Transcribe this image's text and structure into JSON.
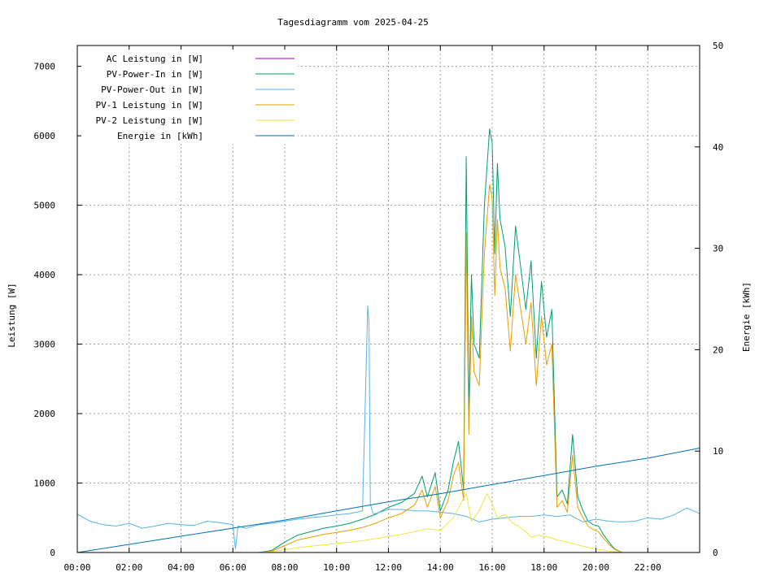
{
  "chart_data": {
    "type": "line",
    "title": "Tagesdiagramm vom 2025-04-25",
    "ylabel": "Leistung [W]",
    "y2label": "Energie [kWh]",
    "xlabel": "",
    "xlim": [
      0,
      24
    ],
    "ylim": [
      0,
      7300
    ],
    "y2lim": [
      0,
      50
    ],
    "x_ticks": [
      "00:00",
      "02:00",
      "04:00",
      "06:00",
      "08:00",
      "10:00",
      "12:00",
      "14:00",
      "16:00",
      "18:00",
      "20:00",
      "22:00"
    ],
    "y_ticks": [
      "0",
      "1000",
      "2000",
      "3000",
      "4000",
      "5000",
      "6000",
      "7000"
    ],
    "y2_ticks": [
      "0",
      "10",
      "20",
      "30",
      "40",
      "50"
    ],
    "grid": true,
    "legend_position": "top-left",
    "series": [
      {
        "name": "AC Leistung in [W]",
        "axis": "left",
        "color": "#9400d3",
        "x": [],
        "values": []
      },
      {
        "name": "PV-Power-In in [W]",
        "axis": "left",
        "color": "#009e73",
        "x": [
          7.0,
          7.5,
          8.0,
          8.5,
          9.0,
          9.5,
          10.0,
          10.5,
          11.0,
          11.5,
          12.0,
          12.5,
          13.0,
          13.3,
          13.5,
          13.8,
          14.0,
          14.3,
          14.5,
          14.7,
          14.9,
          15.0,
          15.1,
          15.2,
          15.3,
          15.5,
          15.7,
          15.9,
          16.0,
          16.1,
          16.2,
          16.3,
          16.5,
          16.7,
          16.9,
          17.1,
          17.3,
          17.5,
          17.7,
          17.9,
          18.1,
          18.3,
          18.5,
          18.7,
          18.9,
          19.1,
          19.3,
          19.5,
          19.7,
          19.9,
          20.1,
          20.3,
          20.5,
          20.7,
          20.9,
          21.0
        ],
        "values": [
          0,
          30,
          150,
          250,
          300,
          350,
          380,
          420,
          480,
          550,
          650,
          720,
          850,
          1100,
          800,
          1150,
          600,
          900,
          1300,
          1600,
          900,
          5700,
          2000,
          4000,
          3000,
          2800,
          5000,
          6100,
          5900,
          4300,
          5600,
          4800,
          4400,
          3400,
          4700,
          4100,
          3500,
          4200,
          2800,
          3900,
          3100,
          3500,
          800,
          900,
          700,
          1700,
          800,
          600,
          450,
          400,
          380,
          250,
          150,
          60,
          20,
          0
        ]
      },
      {
        "name": "PV-Power-Out in [W]",
        "axis": "left",
        "color": "#56b4e9",
        "x": [
          0,
          0.5,
          1,
          1.5,
          2,
          2.5,
          3,
          3.5,
          4,
          4.5,
          5,
          5.5,
          6,
          6.1,
          6.2,
          6.5,
          7,
          7.5,
          8,
          8.5,
          9,
          9.5,
          10,
          10.5,
          11,
          11.2,
          11.25,
          11.3,
          11.4,
          11.5,
          12,
          12.5,
          13,
          13.5,
          14,
          14.5,
          15,
          15.5,
          16,
          16.5,
          17,
          17.5,
          18,
          18.5,
          19,
          19.5,
          20,
          20.5,
          21,
          21.5,
          22,
          22.5,
          23,
          23.5,
          24
        ],
        "values": [
          550,
          450,
          400,
          380,
          420,
          350,
          380,
          420,
          400,
          390,
          450,
          430,
          400,
          50,
          380,
          350,
          400,
          420,
          450,
          480,
          500,
          520,
          540,
          560,
          600,
          3550,
          3300,
          700,
          560,
          560,
          620,
          620,
          600,
          600,
          580,
          560,
          520,
          440,
          480,
          500,
          520,
          520,
          540,
          520,
          540,
          440,
          480,
          450,
          440,
          450,
          500,
          480,
          540,
          640,
          560
        ]
      },
      {
        "name": "PV-1 Leistung in [W]",
        "axis": "left",
        "color": "#e69f00",
        "x": [
          7.0,
          7.5,
          8.0,
          8.5,
          9.0,
          9.5,
          10.0,
          10.5,
          11.0,
          11.5,
          12.0,
          12.5,
          13.0,
          13.3,
          13.5,
          13.8,
          14.0,
          14.3,
          14.5,
          14.7,
          14.9,
          15.0,
          15.1,
          15.2,
          15.3,
          15.5,
          15.7,
          15.9,
          16.0,
          16.1,
          16.2,
          16.3,
          16.5,
          16.7,
          16.9,
          17.1,
          17.3,
          17.5,
          17.7,
          17.9,
          18.1,
          18.3,
          18.5,
          18.7,
          18.9,
          19.1,
          19.3,
          19.5,
          19.7,
          19.9,
          20.1,
          20.3,
          20.5,
          20.7,
          20.9,
          21.0
        ],
        "values": [
          0,
          20,
          100,
          180,
          220,
          260,
          290,
          320,
          360,
          420,
          500,
          560,
          680,
          900,
          650,
          950,
          500,
          750,
          1100,
          1300,
          750,
          4600,
          1700,
          3400,
          2600,
          2400,
          4300,
          5300,
          5100,
          3700,
          4800,
          4100,
          3800,
          2900,
          4000,
          3500,
          3000,
          3600,
          2400,
          3400,
          2700,
          3000,
          650,
          750,
          580,
          1400,
          650,
          500,
          380,
          330,
          300,
          200,
          120,
          50,
          15,
          0
        ]
      },
      {
        "name": "PV-2 Leistung in [W]",
        "axis": "left",
        "color": "#f0e442",
        "x": [
          7.0,
          7.5,
          8.0,
          8.5,
          9.0,
          9.5,
          10.0,
          10.5,
          11.0,
          11.5,
          12.0,
          12.5,
          13.0,
          13.5,
          14.0,
          14.5,
          15.0,
          15.2,
          15.5,
          15.8,
          16.0,
          16.2,
          16.5,
          16.8,
          17.0,
          17.3,
          17.5,
          17.8,
          18.0,
          18.3,
          18.5,
          19.0,
          19.5,
          20.0,
          20.5,
          21.0
        ],
        "values": [
          0,
          10,
          40,
          70,
          90,
          110,
          130,
          150,
          170,
          200,
          230,
          260,
          300,
          340,
          320,
          500,
          850,
          450,
          600,
          850,
          700,
          500,
          550,
          420,
          380,
          300,
          220,
          250,
          230,
          210,
          180,
          140,
          90,
          50,
          20,
          0
        ]
      },
      {
        "name": "Energie in [kWh]",
        "axis": "right",
        "color": "#0072b2",
        "x": [
          0,
          2,
          4,
          6,
          8,
          10,
          12,
          14,
          16,
          18,
          20,
          22,
          24
        ],
        "values": [
          0,
          0.8,
          1.6,
          2.4,
          3.2,
          4.1,
          5.0,
          5.8,
          6.7,
          7.6,
          8.5,
          9.3,
          10.3
        ]
      }
    ]
  }
}
